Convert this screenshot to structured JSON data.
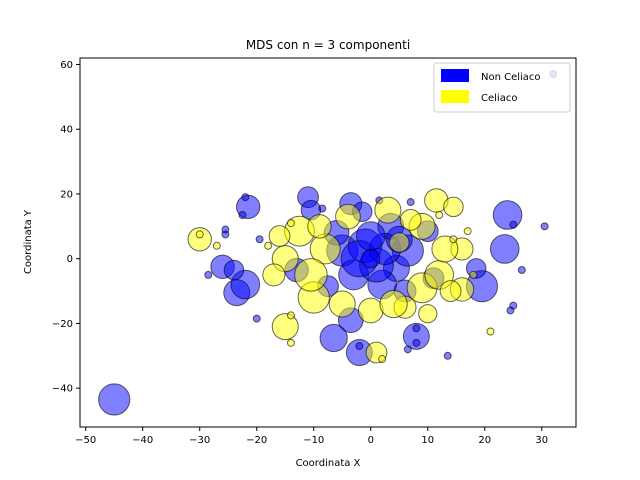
{
  "chart_data": {
    "type": "scatter",
    "title": "MDS con n = 3 componenti",
    "xlabel": "Coordinata X",
    "ylabel": "Coordinata Y",
    "xlim": [
      -51,
      36
    ],
    "ylim": [
      -52,
      62
    ],
    "xticks": [
      -50,
      -40,
      -30,
      -20,
      -10,
      0,
      10,
      20,
      30
    ],
    "yticks": [
      -40,
      -20,
      0,
      20,
      40,
      60
    ],
    "grid": false,
    "legend_position": "top-right",
    "series": [
      {
        "name": "Non Celiaco",
        "color": "#0000ff",
        "points": [
          {
            "x": -45,
            "y": -43.5,
            "s": 2.4
          },
          {
            "x": 32,
            "y": 57,
            "s": 0.5
          },
          {
            "x": 30.5,
            "y": 10,
            "s": 0.5
          },
          {
            "x": 24,
            "y": 13.5,
            "s": 2.2
          },
          {
            "x": 25,
            "y": 10.5,
            "s": 0.5
          },
          {
            "x": 23.5,
            "y": 3,
            "s": 2.2
          },
          {
            "x": 26.5,
            "y": -3.5,
            "s": 0.5
          },
          {
            "x": 25,
            "y": -14.5,
            "s": 0.5
          },
          {
            "x": 24.5,
            "y": -16,
            "s": 0.5
          },
          {
            "x": 19.5,
            "y": -8.5,
            "s": 2.4
          },
          {
            "x": 18.5,
            "y": -3,
            "s": 1.5
          },
          {
            "x": 13.5,
            "y": -30,
            "s": 0.5
          },
          {
            "x": 8,
            "y": -24,
            "s": 2.0
          },
          {
            "x": 8,
            "y": -21.5,
            "s": 0.5
          },
          {
            "x": 8,
            "y": -26,
            "s": 0.5
          },
          {
            "x": 6.5,
            "y": -28,
            "s": 0.5
          },
          {
            "x": -2,
            "y": -29,
            "s": 2.0
          },
          {
            "x": -2,
            "y": -27,
            "s": 0.5
          },
          {
            "x": -6.5,
            "y": -24.5,
            "s": 2.1
          },
          {
            "x": -3.5,
            "y": -19,
            "s": 1.9
          },
          {
            "x": -20,
            "y": -18.5,
            "s": 0.5
          },
          {
            "x": -23.5,
            "y": -10.5,
            "s": 2.0
          },
          {
            "x": -22,
            "y": -8,
            "s": 2.2
          },
          {
            "x": -26,
            "y": -2.5,
            "s": 1.8
          },
          {
            "x": -24,
            "y": -3.5,
            "s": 1.5
          },
          {
            "x": -28.5,
            "y": -5,
            "s": 0.5
          },
          {
            "x": -25.5,
            "y": 7.5,
            "s": 0.5
          },
          {
            "x": -25.5,
            "y": 9,
            "s": 0.5
          },
          {
            "x": -21.5,
            "y": 16,
            "s": 1.8
          },
          {
            "x": -22.5,
            "y": 13.5,
            "s": 0.5
          },
          {
            "x": -22,
            "y": 19,
            "s": 0.5
          },
          {
            "x": -19.5,
            "y": 6,
            "s": 0.5
          },
          {
            "x": -13,
            "y": -3.5,
            "s": 1.8
          },
          {
            "x": -11,
            "y": 19,
            "s": 1.6
          },
          {
            "x": -10.5,
            "y": 15,
            "s": 1.5
          },
          {
            "x": -8.5,
            "y": 15.5,
            "s": 0.5
          },
          {
            "x": -3.5,
            "y": 17,
            "s": 1.7
          },
          {
            "x": -1.5,
            "y": 14.5,
            "s": 1.5
          },
          {
            "x": 1.5,
            "y": 18,
            "s": 0.5
          },
          {
            "x": 3.5,
            "y": 10,
            "s": 2.0
          },
          {
            "x": 7,
            "y": 17.5,
            "s": 0.5
          },
          {
            "x": 10,
            "y": 8.5,
            "s": 1.6
          },
          {
            "x": 11,
            "y": -6,
            "s": 1.6
          },
          {
            "x": 4.5,
            "y": -3,
            "s": 2.0
          },
          {
            "x": 6.5,
            "y": 2.5,
            "s": 2.4
          },
          {
            "x": -5,
            "y": 2.5,
            "s": 2.4
          },
          {
            "x": -3,
            "y": -5,
            "s": 2.3
          },
          {
            "x": 2,
            "y": -8,
            "s": 2.2
          },
          {
            "x": -1,
            "y": 4,
            "s": 2.6
          },
          {
            "x": 1,
            "y": -2,
            "s": 2.6
          },
          {
            "x": -2,
            "y": 0,
            "s": 2.8
          },
          {
            "x": 2.5,
            "y": 3,
            "s": 2.4
          },
          {
            "x": 0,
            "y": 7,
            "s": 2.2
          },
          {
            "x": -6,
            "y": 8,
            "s": 1.9
          },
          {
            "x": 5,
            "y": 6,
            "s": 2.0
          },
          {
            "x": -7.5,
            "y": -8.5,
            "s": 1.6
          },
          {
            "x": 6,
            "y": -10,
            "s": 1.7
          },
          {
            "x": 0,
            "y": 0,
            "s": 1.4
          }
        ]
      },
      {
        "name": "Celiaco",
        "color": "#ffff00",
        "points": [
          {
            "x": -30,
            "y": 6,
            "s": 1.8
          },
          {
            "x": -30,
            "y": 7.5,
            "s": 0.5
          },
          {
            "x": -27,
            "y": 4,
            "s": 0.5
          },
          {
            "x": -15,
            "y": -21,
            "s": 2.0
          },
          {
            "x": -14,
            "y": -26,
            "s": 0.5
          },
          {
            "x": -14,
            "y": -17.5,
            "s": 0.5
          },
          {
            "x": 1,
            "y": -29,
            "s": 1.6
          },
          {
            "x": 2,
            "y": -31,
            "s": 0.5
          },
          {
            "x": 6,
            "y": -15,
            "s": 1.7
          },
          {
            "x": 21,
            "y": -22.5,
            "s": 0.5
          },
          {
            "x": 11.5,
            "y": 18,
            "s": 1.8
          },
          {
            "x": 14.5,
            "y": 16,
            "s": 1.5
          },
          {
            "x": 16,
            "y": 3,
            "s": 1.7
          },
          {
            "x": 17,
            "y": 8.5,
            "s": 0.5
          },
          {
            "x": 16,
            "y": -9.5,
            "s": 1.8
          },
          {
            "x": 12,
            "y": 13.5,
            "s": 0.5
          },
          {
            "x": -12.5,
            "y": 8.5,
            "s": 2.3
          },
          {
            "x": -15,
            "y": 0,
            "s": 2.0
          },
          {
            "x": -10,
            "y": -12,
            "s": 2.4
          },
          {
            "x": -8,
            "y": 3,
            "s": 2.3
          },
          {
            "x": -10.5,
            "y": -5,
            "s": 2.5
          },
          {
            "x": -5,
            "y": -14,
            "s": 2.0
          },
          {
            "x": 0,
            "y": -16,
            "s": 1.9
          },
          {
            "x": 4,
            "y": -14,
            "s": 2.1
          },
          {
            "x": 9,
            "y": -9,
            "s": 2.3
          },
          {
            "x": 12,
            "y": -5,
            "s": 2.2
          },
          {
            "x": 13,
            "y": 3,
            "s": 2.0
          },
          {
            "x": 9,
            "y": 10,
            "s": 2.0
          },
          {
            "x": 3,
            "y": 15,
            "s": 2.0
          },
          {
            "x": -4,
            "y": 13,
            "s": 1.9
          },
          {
            "x": -9,
            "y": 10,
            "s": 1.8
          },
          {
            "x": -16,
            "y": 7,
            "s": 1.6
          },
          {
            "x": -17,
            "y": -5,
            "s": 1.7
          },
          {
            "x": 7,
            "y": 12,
            "s": 1.6
          },
          {
            "x": 14,
            "y": -10,
            "s": 1.6
          },
          {
            "x": 5,
            "y": 5,
            "s": 1.5
          },
          {
            "x": -14,
            "y": 11,
            "s": 0.5
          },
          {
            "x": -18,
            "y": 4,
            "s": 0.5
          },
          {
            "x": 18,
            "y": -5,
            "s": 0.5
          },
          {
            "x": 14.5,
            "y": 6,
            "s": 0.5
          },
          {
            "x": 10,
            "y": -17,
            "s": 1.4
          }
        ]
      }
    ]
  }
}
